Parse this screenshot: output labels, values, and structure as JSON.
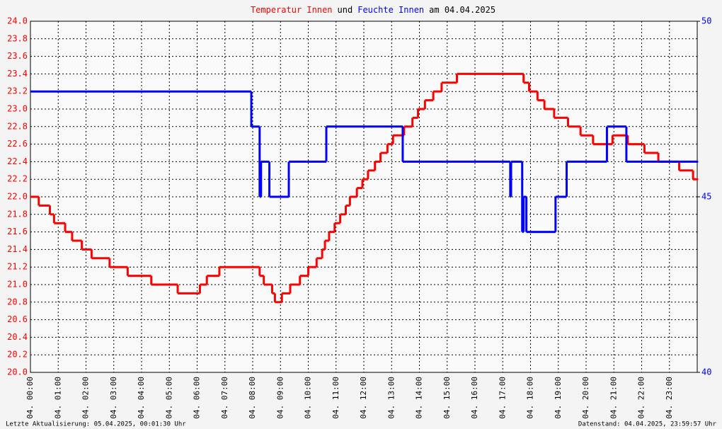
{
  "chart_data": {
    "type": "line",
    "step": true,
    "title_parts": [
      {
        "text": "Temperatur Innen",
        "color": "#ff0000"
      },
      {
        "text": "und",
        "color": "#000000"
      },
      {
        "text": "Feuchte Innen",
        "color": "#0000ff"
      },
      {
        "text": "am 04.04.2025",
        "color": "#000000"
      }
    ],
    "footer_left": "Letzte Aktualisierung: 05.04.2025, 00:01:30 Uhr",
    "footer_right": "Datenstand: 04.04.2025, 23:59:57 Uhr",
    "grid": true,
    "xlim": [
      0,
      24
    ],
    "xticks": [
      {
        "value": 0,
        "label": "04. 00:00"
      },
      {
        "value": 1,
        "label": "04. 01:00"
      },
      {
        "value": 2,
        "label": "04. 02:00"
      },
      {
        "value": 3,
        "label": "04. 03:00"
      },
      {
        "value": 4,
        "label": "04. 04:00"
      },
      {
        "value": 5,
        "label": "04. 05:00"
      },
      {
        "value": 6,
        "label": "04. 06:00"
      },
      {
        "value": 7,
        "label": "04. 07:00"
      },
      {
        "value": 8,
        "label": "04. 08:00"
      },
      {
        "value": 9,
        "label": "04. 09:00"
      },
      {
        "value": 10,
        "label": "04. 10:00"
      },
      {
        "value": 11,
        "label": "04. 11:00"
      },
      {
        "value": 12,
        "label": "04. 12:00"
      },
      {
        "value": 13,
        "label": "04. 13:00"
      },
      {
        "value": 14,
        "label": "04. 14:00"
      },
      {
        "value": 15,
        "label": "04. 15:00"
      },
      {
        "value": 16,
        "label": "04. 16:00"
      },
      {
        "value": 17,
        "label": "04. 17:00"
      },
      {
        "value": 18,
        "label": "04. 18:00"
      },
      {
        "value": 19,
        "label": "04. 19:00"
      },
      {
        "value": 20,
        "label": "04. 20:00"
      },
      {
        "value": 21,
        "label": "04. 21:00"
      },
      {
        "value": 22,
        "label": "04. 22:00"
      },
      {
        "value": 23,
        "label": "04. 23:00"
      }
    ],
    "ylim": [
      20,
      24
    ],
    "yticks": [
      {
        "value": 20,
        "label": "20.0"
      },
      {
        "value": 20.2,
        "label": "20.2"
      },
      {
        "value": 20.4,
        "label": "20.4"
      },
      {
        "value": 20.6,
        "label": "20.6"
      },
      {
        "value": 20.8,
        "label": "20.8"
      },
      {
        "value": 21,
        "label": "21.0"
      },
      {
        "value": 21.2,
        "label": "21.2"
      },
      {
        "value": 21.4,
        "label": "21.4"
      },
      {
        "value": 21.6,
        "label": "21.6"
      },
      {
        "value": 21.8,
        "label": "21.8"
      },
      {
        "value": 22,
        "label": "22.0"
      },
      {
        "value": 22.2,
        "label": "22.2"
      },
      {
        "value": 22.4,
        "label": "22.4"
      },
      {
        "value": 22.6,
        "label": "22.6"
      },
      {
        "value": 22.8,
        "label": "22.8"
      },
      {
        "value": 23,
        "label": "23.0"
      },
      {
        "value": 23.2,
        "label": "23.2"
      },
      {
        "value": 23.4,
        "label": "23.4"
      },
      {
        "value": 23.6,
        "label": "23.6"
      },
      {
        "value": 23.8,
        "label": "23.8"
      },
      {
        "value": 24,
        "label": "24.0"
      }
    ],
    "yaxis_color": "#ff0000",
    "y2lim": [
      40,
      50
    ],
    "y2ticks": [
      40,
      45,
      50
    ],
    "y2axis_color": "#0000ff",
    "series": [
      {
        "name": "Temperatur Innen",
        "color": "#ff0000",
        "x": [
          0,
          0.3,
          0.7,
          0.85,
          1.25,
          1.5,
          1.85,
          2.2,
          2.85,
          3.5,
          4.35,
          5.3,
          6.1,
          6.35,
          6.8,
          8.25,
          8.4,
          8.7,
          8.8,
          9.05,
          9.35,
          9.7,
          10.0,
          10.3,
          10.5,
          10.6,
          10.75,
          10.95,
          11.15,
          11.35,
          11.5,
          11.75,
          11.95,
          12.15,
          12.4,
          12.6,
          12.85,
          13.05,
          13.45,
          13.75,
          13.95,
          14.2,
          14.5,
          14.8,
          15.35,
          17.75,
          17.95,
          18.25,
          18.5,
          18.85,
          19.35,
          19.8,
          20.25,
          20.95,
          21.5,
          22.1,
          22.6,
          23.35,
          23.85,
          24
        ],
        "values": [
          22.0,
          21.9,
          21.8,
          21.7,
          21.6,
          21.5,
          21.4,
          21.3,
          21.2,
          21.1,
          21.0,
          20.9,
          21.0,
          21.1,
          21.2,
          21.1,
          21.0,
          20.9,
          20.8,
          20.9,
          21.0,
          21.1,
          21.2,
          21.3,
          21.4,
          21.5,
          21.6,
          21.7,
          21.8,
          21.9,
          22.0,
          22.1,
          22.2,
          22.3,
          22.4,
          22.5,
          22.6,
          22.7,
          22.8,
          22.9,
          23.0,
          23.1,
          23.2,
          23.3,
          23.4,
          23.3,
          23.2,
          23.1,
          23.0,
          22.9,
          22.8,
          22.7,
          22.6,
          22.7,
          22.6,
          22.5,
          22.4,
          22.3,
          22.2,
          22.2
        ]
      },
      {
        "name": "Feuchte Innen",
        "color": "#0000ff",
        "axis": "y2",
        "x": [
          0,
          7.95,
          8.25,
          8.3,
          8.6,
          9.3,
          10.65,
          13.4,
          17.27,
          17.3,
          17.7,
          17.75,
          17.85,
          18.9,
          19.3,
          20.75,
          21.45,
          24
        ],
        "values": [
          48,
          47,
          45,
          46,
          45,
          46,
          47,
          46,
          45,
          46,
          44,
          45,
          44,
          45,
          46,
          47,
          46,
          46
        ]
      }
    ]
  }
}
